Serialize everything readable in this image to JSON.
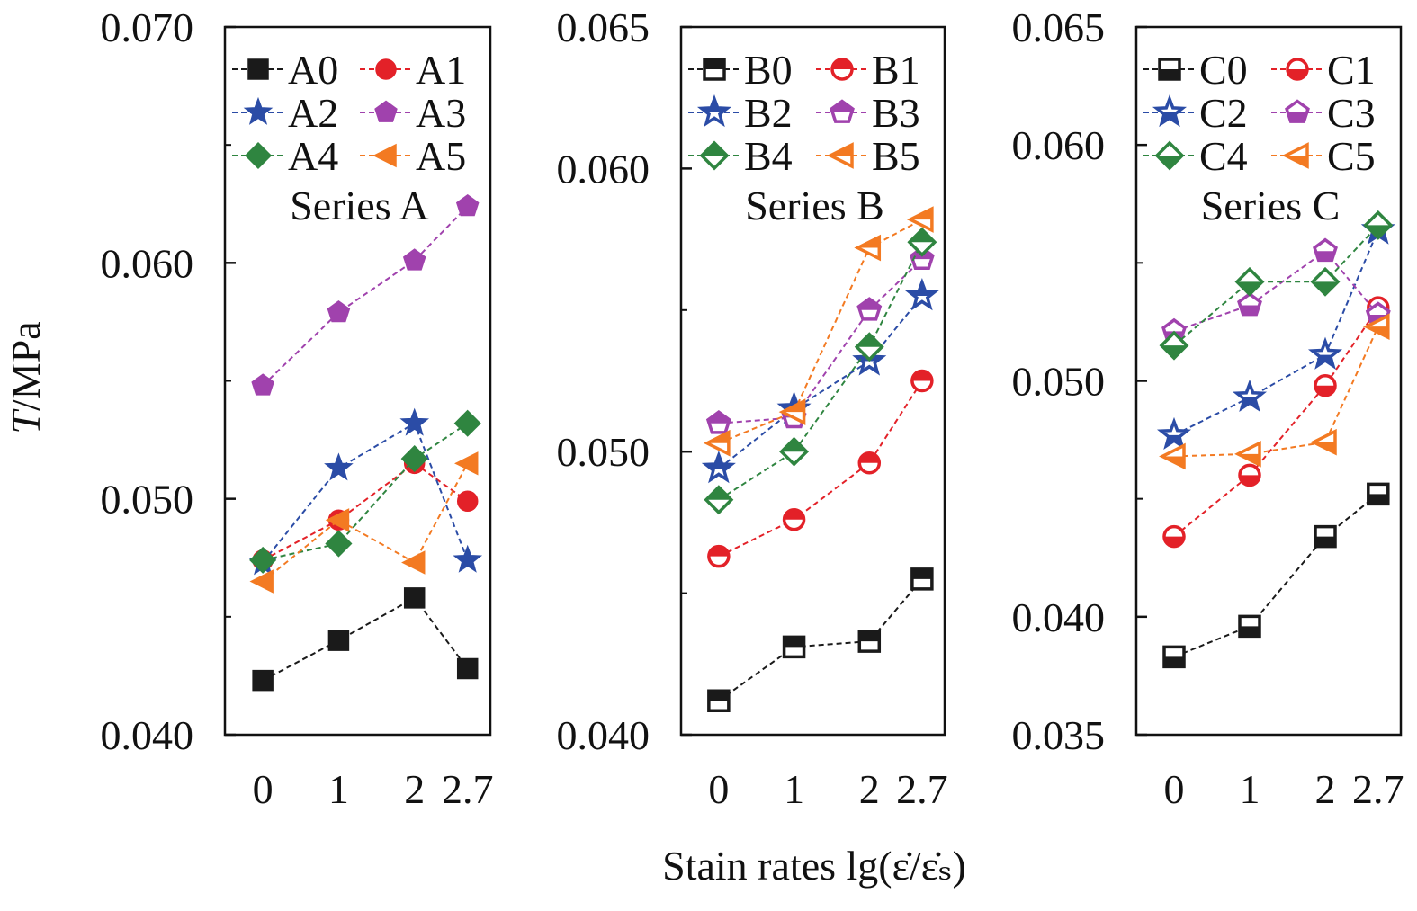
{
  "chart_data": {
    "ylabel_var": "T",
    "ylabel_unit": "/MPa",
    "xlabel": "Stain rates lg(ε̇/ε̇ₛ)",
    "colors": {
      "0": "#1a1a1a",
      "1": "#e32128",
      "2": "#2b4ca6",
      "3": "#a042ad",
      "4": "#2f8540",
      "5": "#f37a22"
    },
    "panels": [
      {
        "type": "line",
        "title": "Series A",
        "marker_fill": "full",
        "x": [
          0,
          1,
          2,
          2.7
        ],
        "x_tick_labels": [
          "0",
          "1",
          "2",
          "2.7"
        ],
        "xlim": [
          -0.5,
          3.0
        ],
        "ylim": [
          0.04,
          0.07
        ],
        "y_ticks": [
          0.04,
          0.05,
          0.06,
          0.07
        ],
        "y_tick_labels": [
          "0.040",
          "0.050",
          "0.060",
          "0.070"
        ],
        "y_minor_ticks": [
          0.045,
          0.055,
          0.065
        ],
        "series": [
          {
            "name": "A0",
            "marker": "square",
            "values": [
              0.0423,
              0.044,
              0.0458,
              0.0428
            ]
          },
          {
            "name": "A1",
            "marker": "circle",
            "values": [
              0.0474,
              0.0491,
              0.0515,
              0.0499
            ]
          },
          {
            "name": "A2",
            "marker": "star",
            "values": [
              0.0473,
              0.0513,
              0.0532,
              0.0474
            ]
          },
          {
            "name": "A3",
            "marker": "pentagon",
            "values": [
              0.0548,
              0.0579,
              0.0601,
              0.0624
            ]
          },
          {
            "name": "A4",
            "marker": "diamond",
            "values": [
              0.0474,
              0.0481,
              0.0517,
              0.0532
            ]
          },
          {
            "name": "A5",
            "marker": "triangle-left",
            "values": [
              0.0465,
              0.0491,
              0.0473,
              0.0515
            ]
          }
        ]
      },
      {
        "type": "line",
        "title": "Series B",
        "marker_fill": "top-half",
        "x": [
          0,
          1,
          2,
          2.7
        ],
        "x_tick_labels": [
          "0",
          "1",
          "2",
          "2.7"
        ],
        "xlim": [
          -0.5,
          3.0
        ],
        "ylim": [
          0.04,
          0.065
        ],
        "y_ticks": [
          0.04,
          0.05,
          0.06,
          0.065
        ],
        "y_tick_labels": [
          "0.040",
          "0.050",
          "0.060",
          "0.065"
        ],
        "y_minor_ticks": [
          0.045,
          0.055
        ],
        "series": [
          {
            "name": "B0",
            "marker": "square",
            "values": [
              0.0412,
              0.0431,
              0.0433,
              0.0455
            ]
          },
          {
            "name": "B1",
            "marker": "circle",
            "values": [
              0.0463,
              0.0476,
              0.0496,
              0.0525
            ]
          },
          {
            "name": "B2",
            "marker": "star",
            "values": [
              0.0494,
              0.0515,
              0.0532,
              0.0555
            ]
          },
          {
            "name": "B3",
            "marker": "pentagon",
            "values": [
              0.051,
              0.0512,
              0.055,
              0.0568
            ]
          },
          {
            "name": "B4",
            "marker": "diamond",
            "values": [
              0.0483,
              0.05,
              0.0537,
              0.0574
            ]
          },
          {
            "name": "B5",
            "marker": "triangle-left",
            "values": [
              0.0503,
              0.0514,
              0.0572,
              0.0582
            ]
          }
        ]
      },
      {
        "type": "line",
        "title": "Series C",
        "marker_fill": "bottom-half",
        "x": [
          0,
          1,
          2,
          2.7
        ],
        "x_tick_labels": [
          "0",
          "1",
          "2",
          "2.7"
        ],
        "xlim": [
          -0.5,
          3.0
        ],
        "ylim": [
          0.035,
          0.065
        ],
        "y_ticks": [
          0.035,
          0.04,
          0.05,
          0.06,
          0.065
        ],
        "y_tick_labels": [
          "0.035",
          "0.040",
          "0.050",
          "0.060",
          "0.065"
        ],
        "y_minor_ticks": [
          0.045,
          0.055
        ],
        "series": [
          {
            "name": "C0",
            "marker": "square",
            "values": [
              0.0383,
              0.0396,
              0.0434,
              0.0452
            ]
          },
          {
            "name": "C1",
            "marker": "circle",
            "values": [
              0.0434,
              0.046,
              0.0498,
              0.0531
            ]
          },
          {
            "name": "C2",
            "marker": "star",
            "values": [
              0.0477,
              0.0493,
              0.0511,
              0.0564
            ]
          },
          {
            "name": "C3",
            "marker": "pentagon",
            "values": [
              0.0521,
              0.0532,
              0.0555,
              0.0528
            ]
          },
          {
            "name": "C4",
            "marker": "diamond",
            "values": [
              0.0515,
              0.0542,
              0.0542,
              0.0566
            ]
          },
          {
            "name": "C5",
            "marker": "triangle-left",
            "values": [
              0.0468,
              0.0469,
              0.0474,
              0.0523
            ]
          }
        ]
      }
    ]
  }
}
